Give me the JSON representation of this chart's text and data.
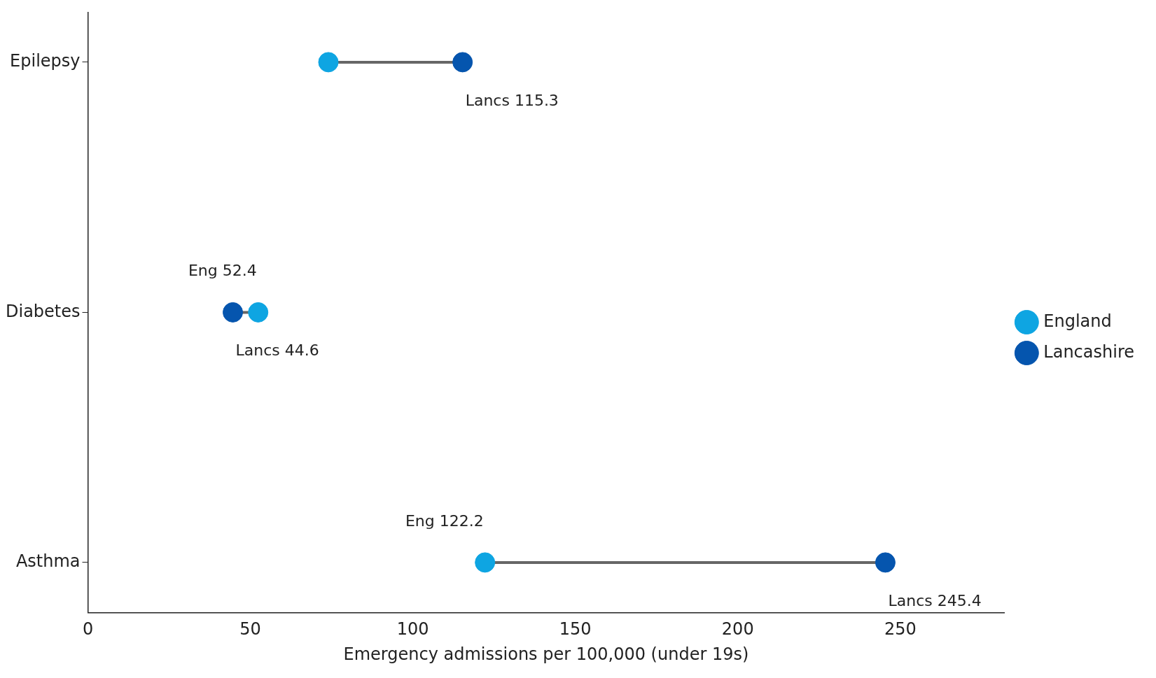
{
  "chart_data": {
    "type": "scatter",
    "orientation": "horizontal",
    "categories": [
      "Epilepsy",
      "Diabetes",
      "Asthma"
    ],
    "xlabel": "Emergency admissions per 100,000 (under 19s)",
    "xlim": [
      0,
      282
    ],
    "xticks": [
      0,
      50,
      100,
      150,
      200,
      250
    ],
    "grid": false,
    "legend": "right",
    "marker": "circle",
    "series": [
      {
        "name": "England",
        "color": "#0ea5e2",
        "values": [
          74,
          52.4,
          122.2
        ],
        "value_labels": [
          null,
          "Eng 52.4",
          "Eng 122.2"
        ]
      },
      {
        "name": "Lancashire",
        "color": "#0555ae",
        "values": [
          115.3,
          44.6,
          245.4
        ],
        "value_labels": [
          "Lancs 115.3",
          "Lancs 44.6",
          "Lancs 245.4"
        ]
      }
    ]
  }
}
